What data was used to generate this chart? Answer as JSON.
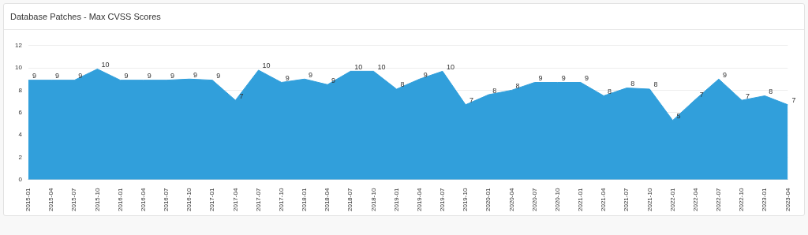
{
  "chart_data": {
    "type": "area",
    "title": "Database Patches - Max CVSS Scores",
    "categories": [
      "2015-01",
      "2015-04",
      "2015-07",
      "2015-10",
      "2016-01",
      "2016-04",
      "2016-07",
      "2016-10",
      "2017-01",
      "2017-04",
      "2017-07",
      "2017-10",
      "2018-01",
      "2018-04",
      "2018-07",
      "2018-10",
      "2019-01",
      "2019-04",
      "2019-07",
      "2019-10",
      "2020-01",
      "2020-04",
      "2020-07",
      "2020-10",
      "2021-01",
      "2021-04",
      "2021-07",
      "2021-10",
      "2022-01",
      "2022-04",
      "2022-07",
      "2022-10",
      "2023-01",
      "2023-04"
    ],
    "values": [
      8.9,
      8.9,
      8.9,
      9.9,
      8.9,
      8.9,
      8.9,
      9.0,
      8.9,
      7.1,
      9.8,
      8.7,
      9.0,
      8.5,
      9.7,
      9.7,
      8.1,
      9.0,
      9.7,
      6.7,
      7.6,
      8.0,
      8.7,
      8.7,
      8.7,
      7.5,
      8.2,
      8.1,
      5.3,
      7.2,
      9.0,
      7.1,
      7.5,
      6.7
    ],
    "value_labels": [
      "9",
      "9",
      "9",
      "10",
      "9",
      "9",
      "9",
      "9",
      "9",
      "7",
      "10",
      "9",
      "9",
      "9",
      "10",
      "10",
      "8",
      "9",
      "10",
      "7",
      "8",
      "8",
      "9",
      "9",
      "9",
      "8",
      "8",
      "8",
      "5",
      "7",
      "9",
      "7",
      "8",
      "7"
    ],
    "color": "#319fdb",
    "ylim": [
      0,
      12
    ],
    "yticks": [
      0,
      2,
      4,
      6,
      8,
      10,
      12
    ],
    "grid": "y",
    "marker": "none"
  }
}
